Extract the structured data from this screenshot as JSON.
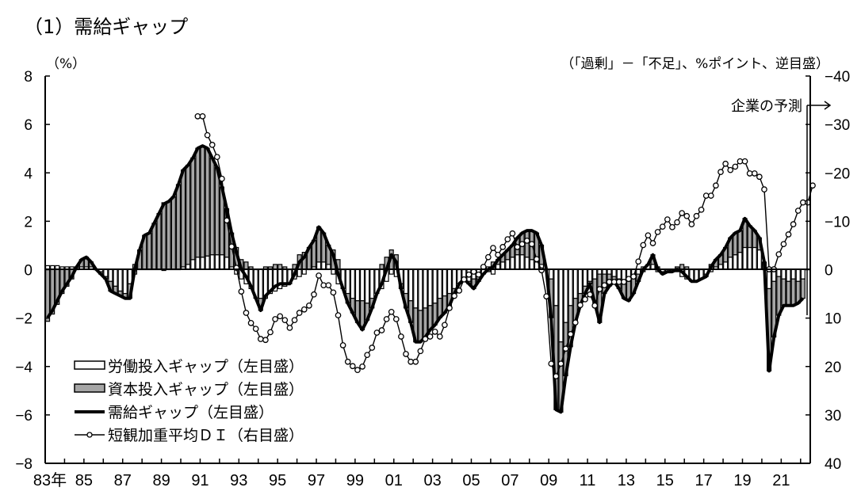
{
  "chart_data": {
    "type": "bar+line",
    "title": "（1）需給ギャップ",
    "left_axis": {
      "unit_label": "（%）",
      "ylim": [
        -8,
        8
      ],
      "ticks": [
        "8",
        "6",
        "4",
        "2",
        "0",
        "-2",
        "-4",
        "-6",
        "-8"
      ]
    },
    "right_axis": {
      "unit_label": "（「過剰」－「不足」、%ポイント、逆目盛）",
      "ylim": [
        -40,
        40
      ],
      "inverted": true,
      "ticks": [
        "-40",
        "-30",
        "-20",
        "-10",
        "0",
        "10",
        "20",
        "30",
        "40"
      ]
    },
    "x_tick_labels": [
      "83年",
      "85",
      "87",
      "89",
      "91",
      "93",
      "95",
      "97",
      "99",
      "01",
      "03",
      "05",
      "07",
      "09",
      "11",
      "13",
      "15",
      "17",
      "19",
      "21"
    ],
    "xlim": [
      1983,
      2022.5
    ],
    "frequency": "quarterly",
    "gap_start": "1983Q1",
    "di_start": "1990Q4",
    "annotation": "企業の予測",
    "colors": {
      "labor": "#ffffff",
      "capital": "#a6a6a6",
      "line": "#000000"
    },
    "legend": [
      {
        "label": "労働投入ギャップ（左目盛）",
        "style": "white-bar"
      },
      {
        "label": "資本投入ギャップ（左目盛）",
        "style": "gray-bar"
      },
      {
        "label": "需給ギャップ（左目盛）",
        "style": "thick-line"
      },
      {
        "label": "短観加重平均ＤＩ（右目盛）",
        "style": "line-circle"
      }
    ],
    "legend_position": "bottom-left",
    "series": [
      {
        "name": "需給ギャップ（左目盛）",
        "values": [
          -2.0,
          -1.7,
          -1.3,
          -0.9,
          -0.6,
          -0.3,
          0.1,
          0.4,
          0.5,
          0.3,
          0.0,
          -0.2,
          -0.4,
          -0.9,
          -1.0,
          -1.1,
          -1.2,
          -1.2,
          0.0,
          0.8,
          1.4,
          1.5,
          1.9,
          2.3,
          2.7,
          2.8,
          3.0,
          3.5,
          4.1,
          4.3,
          4.6,
          5.0,
          5.1,
          5.0,
          4.6,
          4.2,
          3.4,
          2.5,
          1.5,
          0.7,
          0.0,
          -0.3,
          -0.7,
          -1.2,
          -1.7,
          -1.1,
          -0.9,
          -0.7,
          -0.6,
          -0.6,
          -0.6,
          -0.2,
          0.3,
          0.5,
          0.9,
          1.2,
          1.75,
          1.5,
          1.0,
          0.6,
          -0.2,
          -0.8,
          -1.4,
          -1.8,
          -2.2,
          -2.5,
          -2.1,
          -1.6,
          -1.0,
          -0.6,
          0.0,
          0.6,
          0.3,
          -0.8,
          -1.6,
          -2.2,
          -3.0,
          -3.0,
          -2.8,
          -2.5,
          -2.3,
          -2.0,
          -1.8,
          -1.5,
          -1.0,
          -0.6,
          -0.4,
          -0.6,
          -0.8,
          -0.5,
          -0.2,
          0.0,
          0.1,
          0.4,
          0.6,
          0.8,
          1.0,
          1.3,
          1.5,
          1.6,
          1.6,
          1.5,
          1.0,
          0.0,
          -2.0,
          -5.8,
          -5.9,
          -4.4,
          -3.2,
          -2.2,
          -1.5,
          -1.0,
          -0.6,
          -1.4,
          -2.2,
          -1.0,
          -0.7,
          -0.5,
          -0.8,
          -1.2,
          -1.3,
          -1.0,
          -0.5,
          0.0,
          0.2,
          0.6,
          0.0,
          -0.2,
          -0.1,
          -0.1,
          0.0,
          -0.1,
          -0.3,
          -0.5,
          -0.5,
          -0.4,
          -0.3,
          0.1,
          0.4,
          0.6,
          0.9,
          1.3,
          1.5,
          1.6,
          2.1,
          1.8,
          1.6,
          1.3,
          0.3,
          -4.2,
          -2.8,
          -1.9,
          -1.5,
          -1.5,
          -1.5,
          -1.4,
          -1.2
        ]
      },
      {
        "name": "労働投入ギャップ（左目盛）",
        "values": [
          0.15,
          0.15,
          0.15,
          0.1,
          0.1,
          0.1,
          0.1,
          0.1,
          0.1,
          0.1,
          0.0,
          -0.1,
          -0.3,
          -0.5,
          -0.7,
          -0.9,
          -1.0,
          -0.6,
          -0.2,
          0.0,
          0.0,
          0.0,
          0.0,
          0.0,
          -0.05,
          0.0,
          0.0,
          0.0,
          0.1,
          0.2,
          0.4,
          0.5,
          0.5,
          0.55,
          0.6,
          0.6,
          0.6,
          0.5,
          0.1,
          -0.2,
          -0.4,
          -0.6,
          -0.8,
          -1.2,
          -1.2,
          -1.2,
          -1.0,
          -0.9,
          -0.8,
          -0.7,
          -0.6,
          -0.4,
          -0.3,
          -0.2,
          0.0,
          0.1,
          0.3,
          0.3,
          0.2,
          -0.2,
          -0.6,
          -0.8,
          -1.0,
          -1.2,
          -1.3,
          -1.3,
          -1.4,
          -1.2,
          -1.0,
          -0.8,
          -0.5,
          -0.2,
          -0.3,
          -0.6,
          -1.0,
          -1.3,
          -1.6,
          -1.7,
          -1.6,
          -1.5,
          -1.4,
          -1.2,
          -1.1,
          -1.0,
          -0.8,
          -0.6,
          -0.4,
          -0.5,
          -0.4,
          -0.4,
          -0.2,
          0.1,
          -0.2,
          0.2,
          0.3,
          0.4,
          0.5,
          0.6,
          0.6,
          0.5,
          0.4,
          0.3,
          0.2,
          0.0,
          -0.4,
          -1.5,
          -3.0,
          -2.2,
          -1.5,
          -1.2,
          -1.0,
          -0.7,
          -0.5,
          -0.4,
          -0.2,
          -0.2,
          -0.2,
          -0.3,
          -0.4,
          -0.5,
          -0.4,
          -0.3,
          -0.2,
          0.1,
          0.2,
          0.2,
          -0.1,
          -0.1,
          -0.1,
          0.0,
          -0.1,
          -0.3,
          -0.4,
          -0.5,
          -0.5,
          -0.4,
          -0.2,
          -0.1,
          0.1,
          0.2,
          0.3,
          0.5,
          0.6,
          0.7,
          0.9,
          0.9,
          0.9,
          0.8,
          0.0,
          -0.8,
          -0.5,
          -0.3,
          -0.4,
          -0.5,
          -0.4,
          -0.5,
          -0.4
        ]
      },
      {
        "name": "資本投入ギャップ（左目盛）",
        "values": [
          -2.15,
          -1.85,
          -1.45,
          -1.0,
          -0.7,
          -0.4,
          0.0,
          0.3,
          0.4,
          0.2,
          0.0,
          -0.1,
          -0.1,
          -0.4,
          -0.3,
          -0.2,
          -0.2,
          -0.6,
          0.2,
          0.8,
          1.4,
          1.5,
          1.9,
          2.3,
          2.75,
          2.8,
          3.0,
          3.5,
          4.0,
          4.1,
          4.2,
          4.5,
          4.6,
          4.45,
          4.0,
          3.6,
          2.8,
          2.0,
          1.4,
          0.9,
          0.4,
          0.3,
          0.1,
          0.0,
          -0.5,
          0.1,
          0.1,
          0.2,
          0.2,
          0.1,
          0.0,
          0.2,
          0.6,
          0.7,
          0.9,
          1.1,
          1.45,
          1.2,
          0.8,
          0.8,
          0.4,
          0.0,
          -0.4,
          -0.6,
          -0.9,
          -1.2,
          -0.7,
          -0.4,
          0.0,
          0.2,
          0.5,
          0.8,
          0.6,
          -0.2,
          -0.6,
          -0.9,
          -1.4,
          -1.3,
          -1.2,
          -1.0,
          -0.9,
          -0.8,
          -0.7,
          -0.5,
          -0.2,
          0.0,
          0.0,
          -0.1,
          -0.4,
          -0.1,
          0.0,
          -0.1,
          0.3,
          0.2,
          0.3,
          0.4,
          0.5,
          0.7,
          0.9,
          1.1,
          1.2,
          1.2,
          0.8,
          0.0,
          -1.6,
          -4.3,
          -2.9,
          -2.2,
          -1.7,
          -1.0,
          -0.5,
          -0.3,
          -0.1,
          -1.0,
          -2.0,
          -0.8,
          -0.5,
          -0.2,
          -0.4,
          -0.7,
          -0.9,
          -0.7,
          -0.3,
          -0.1,
          0.0,
          0.4,
          0.1,
          -0.1,
          0.0,
          -0.1,
          0.1,
          0.2,
          0.1,
          0.0,
          0.0,
          0.0,
          -0.1,
          0.2,
          0.3,
          0.4,
          0.6,
          0.8,
          0.9,
          0.9,
          1.2,
          0.9,
          0.7,
          0.5,
          0.3,
          -3.4,
          -2.3,
          -1.6,
          -1.1,
          -1.0,
          -1.1,
          -0.9,
          -0.8
        ]
      },
      {
        "name": "短観加重平均ＤＩ（右目盛）",
        "values": [
          -31.6,
          -31.6,
          -27.7,
          -25.7,
          -23.2,
          -18.7,
          -10.1,
          -4.7,
          -0.3,
          4.6,
          9.0,
          11.1,
          12.3,
          14.4,
          14.6,
          13.0,
          10.3,
          9.7,
          10.5,
          12.1,
          10.5,
          9.0,
          8.3,
          7.5,
          5.2,
          1.3,
          3.3,
          3.3,
          4.8,
          9.5,
          15.7,
          19.1,
          20.0,
          20.8,
          20.1,
          17.7,
          16.2,
          13.1,
          12.6,
          10.3,
          8.8,
          10.3,
          13.9,
          17.5,
          19.1,
          19.1,
          16.9,
          14.4,
          13.9,
          12.9,
          13.9,
          11.5,
          8.0,
          5.5,
          4.4,
          2.1,
          1.1,
          0.5,
          1.1,
          -0.5,
          -2.5,
          -4.4,
          -3.0,
          -4.6,
          -6.2,
          -7.4,
          -4.6,
          -5.2,
          -5.9,
          -5.2,
          -2.1,
          0.2,
          5.6,
          19.5,
          22.1,
          19.5,
          16.4,
          13.4,
          11.0,
          7.4,
          6.2,
          5.2,
          7.5,
          4.1,
          3.3,
          2.6,
          2.6,
          2.6,
          2.6,
          2.0,
          1.5,
          -1.6,
          -5.0,
          -7.0,
          -5.4,
          -7.7,
          -8.8,
          -10.3,
          -8.7,
          -9.7,
          -11.6,
          -11.0,
          -9.3,
          -11.0,
          -12.3,
          -15.2,
          -15.2,
          -17.3,
          -20.1,
          -21.8,
          -20.5,
          -21.2,
          -22.3,
          -22.3,
          -19.8,
          -19.8,
          -19.1,
          -16.5,
          0.0,
          0.0,
          -3.1,
          -5.2,
          -7.2,
          -9.3,
          -12.1,
          -13.8,
          -13.8,
          -17.3
        ]
      }
    ]
  }
}
